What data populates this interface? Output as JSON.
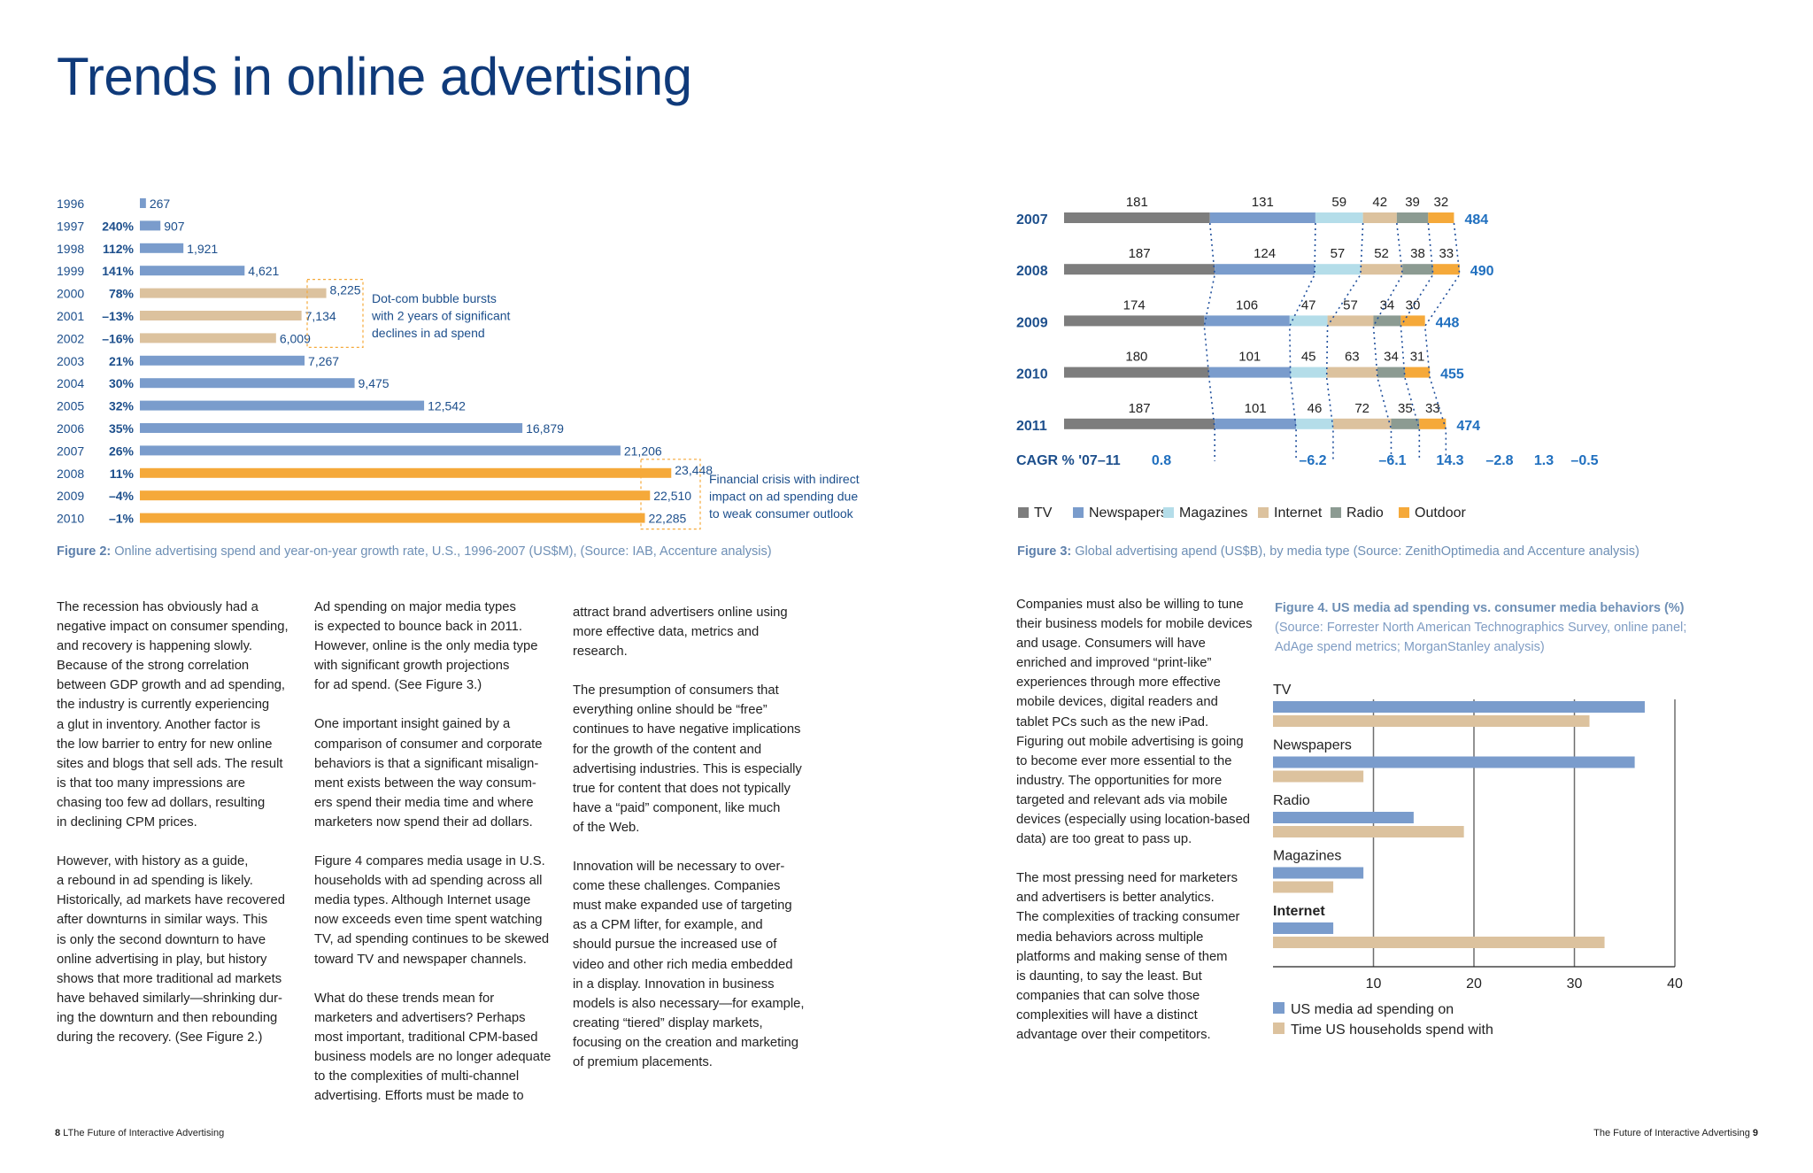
{
  "page_title": "Trends in online advertising",
  "colors": {
    "title": "#0f3a7a",
    "blue": "#7a9ccc",
    "tan": "#dcc29e",
    "orange": "#f5a93a",
    "gray": "#7d7d7d",
    "lightblue": "#b4dde9",
    "radio_gray": "#8c9b92",
    "dark_blue": "#1d4f8c"
  },
  "figure2": {
    "caption_label": "Figure 2:",
    "caption_text": " Online advertising spend and year-on-year growth rate, U.S., 1996-2007 (US$M), (Source: IAB, Accenture analysis)",
    "annotation_dotcom": [
      "Dot-com bubble bursts",
      "with 2 years of significant",
      "declines in ad spend"
    ],
    "annotation_crisis": [
      "Financial crisis with indirect",
      "impact on ad spending due",
      "to weak consumer outlook"
    ]
  },
  "figure3": {
    "caption_label": "Figure 3:",
    "caption_text": " Global advertising apend (US$B), by media type (Source: ZenithOptimedia and Accenture analysis)",
    "cagr_label": "CAGR % '07–11"
  },
  "figure4": {
    "caption_title": "Figure 4. US media ad spending vs. consumer media behaviors (%)",
    "caption_source": "(Source: Forrester North American Technographics Survey, online panel; AdAge spend metrics; MorganStanley analysis)"
  },
  "chart_data": [
    {
      "type": "bar",
      "orientation": "horizontal",
      "categories": [
        "1996",
        "1997",
        "1998",
        "1999",
        "2000",
        "2001",
        "2002",
        "2003",
        "2004",
        "2005",
        "2006",
        "2007",
        "2008",
        "2009",
        "2010"
      ],
      "values": [
        267,
        907,
        1921,
        4621,
        8225,
        7134,
        6009,
        7267,
        9475,
        12542,
        16879,
        21206,
        23448,
        22510,
        22285
      ],
      "value_labels": [
        "267",
        "907",
        "1,921",
        "4,621",
        "8,225",
        "7,134",
        "6,009",
        "7,267",
        "9,475",
        "12,542",
        "16,879",
        "21,206",
        "23,448",
        "22,510",
        "22,285"
      ],
      "growth_labels": [
        "",
        "240%",
        "112%",
        "141%",
        "78%",
        "–13%",
        "–16%",
        "21%",
        "30%",
        "32%",
        "35%",
        "26%",
        "11%",
        "–4%",
        "–1%"
      ],
      "bar_colors": [
        "#7a9ccc",
        "#7a9ccc",
        "#7a9ccc",
        "#7a9ccc",
        "#dcc29e",
        "#dcc29e",
        "#dcc29e",
        "#7a9ccc",
        "#7a9ccc",
        "#7a9ccc",
        "#7a9ccc",
        "#7a9ccc",
        "#f5a93a",
        "#f5a93a",
        "#f5a93a"
      ],
      "title": "",
      "xlabel": "",
      "ylabel": ""
    },
    {
      "type": "bar",
      "stacked": true,
      "orientation": "horizontal",
      "categories": [
        "2007",
        "2008",
        "2009",
        "2010",
        "2011"
      ],
      "series": [
        {
          "name": "TV",
          "color": "#7d7d7d",
          "values": [
            181,
            187,
            174,
            180,
            187
          ]
        },
        {
          "name": "Newspapers",
          "color": "#7a9ccc",
          "values": [
            131,
            124,
            106,
            101,
            101
          ]
        },
        {
          "name": "Magazines",
          "color": "#b4dde9",
          "values": [
            59,
            57,
            47,
            45,
            46
          ]
        },
        {
          "name": "Internet",
          "color": "#dcc29e",
          "values": [
            42,
            52,
            57,
            63,
            72
          ]
        },
        {
          "name": "Radio",
          "color": "#8c9b92",
          "values": [
            39,
            38,
            34,
            34,
            35
          ]
        },
        {
          "name": "Outdoor",
          "color": "#f5a93a",
          "values": [
            32,
            33,
            30,
            31,
            33
          ]
        }
      ],
      "totals": [
        484,
        490,
        448,
        455,
        474
      ],
      "cagr": [
        "0.8",
        "–6.2",
        "–6.1",
        "14.3",
        "–2.8",
        "1.3",
        "–0.5"
      ],
      "legend_position": "bottom"
    },
    {
      "type": "bar",
      "orientation": "horizontal",
      "categories": [
        "TV",
        "Newspapers",
        "Radio",
        "Magazines",
        "Internet"
      ],
      "series": [
        {
          "name": "US media ad spending on",
          "color": "#7a9ccc",
          "values": [
            37,
            36,
            14,
            9,
            6
          ]
        },
        {
          "name": "Time US households spend with",
          "color": "#dcc29e",
          "values": [
            31.5,
            9,
            19,
            6,
            33
          ]
        }
      ],
      "xticks": [
        10,
        20,
        30,
        40
      ],
      "xlim": [
        0,
        40
      ],
      "grid": true,
      "legend_position": "bottom"
    }
  ],
  "col1": [
    "The recession has obviously had a\nnegative impact on consumer spending,\nand recovery is happening slowly.\nBecause of the strong correlation\nbetween GDP growth and ad spending,\nthe industry is currently experiencing\na glut in inventory. Another factor is\nthe low barrier to entry for new online\nsites and blogs that sell ads. The result\nis that too many impressions are\nchasing too few ad dollars, resulting\nin declining CPM prices.",
    "However, with history as a guide,\na rebound in ad spending is likely.\nHistorically, ad markets have recovered\nafter downturns in similar ways. This\nis only the second downturn to have\nonline advertising in play, but history\nshows that more traditional ad markets\nhave behaved similarly—shrinking dur-\ning the downturn and then rebounding\nduring the recovery. (See Figure 2.)"
  ],
  "col2": [
    "Ad spending on major media types\nis expected to bounce back in 2011.\nHowever, online is the only media type\nwith significant growth projections\nfor ad spend. (See Figure 3.)",
    "One important insight gained by a\ncomparison of consumer and corporate\nbehaviors is that a significant misalign-\nment exists between the way consum-\ners spend their media time and where\nmarketers now spend their ad dollars.",
    "Figure 4 compares media usage in U.S.\nhouseholds with ad spending across all\nmedia types. Although Internet usage\nnow exceeds even time spent watching\nTV, ad spending continues to be skewed\ntoward TV and newspaper channels.",
    "What do these trends mean for\nmarketers and advertisers? Perhaps\nmost important, traditional CPM-based\nbusiness models are no longer adequate\nto the complexities of multi-channel\nadvertising. Efforts must be made to"
  ],
  "col3": [
    "attract brand advertisers online using\nmore effective data, metrics and\nresearch.",
    "The presumption of consumers that\neverything online should be “free”\ncontinues to have negative implications\nfor the growth of the content and\nadvertising industries. This is especially\ntrue for content that does not typically\nhave a “paid” component, like much\nof the Web.",
    "Innovation will be necessary to over-\ncome these challenges. Companies\nmust make expanded use of targeting\nas a CPM lifter, for example, and\nshould pursue the increased use of\nvideo and other rich media embedded\nin a display. Innovation in business\nmodels is also necessary—for example,\ncreating “tiered” display markets,\nfocusing on the creation and marketing\nof premium placements."
  ],
  "col4": [
    "Companies must also be willing to tune\ntheir business models for mobile devices\nand usage. Consumers will have\nenriched and improved “print-like”\nexperiences through more effective\nmobile devices, digital readers and\ntablet PCs such as the new iPad.\nFiguring out mobile advertising is going\nto become ever more essential to the\nindustry. The opportunities for more\ntargeted and relevant ads via mobile\ndevices (especially using location-based\ndata) are too great to pass up.",
    "The most pressing need for marketers\nand advertisers is better analytics.\nThe complexities of tracking consumer\nmedia behaviors across multiple\nplatforms and making sense of them\nis daunting, to say the least. But\ncompanies that can solve those\ncomplexities will have a distinct\nadvantage over their competitors."
  ],
  "footer": {
    "left_num": "8",
    "left_text": " LThe Future of Interactive Advertising",
    "right_text": "The Future of Interactive Advertising ",
    "right_num": "9"
  }
}
